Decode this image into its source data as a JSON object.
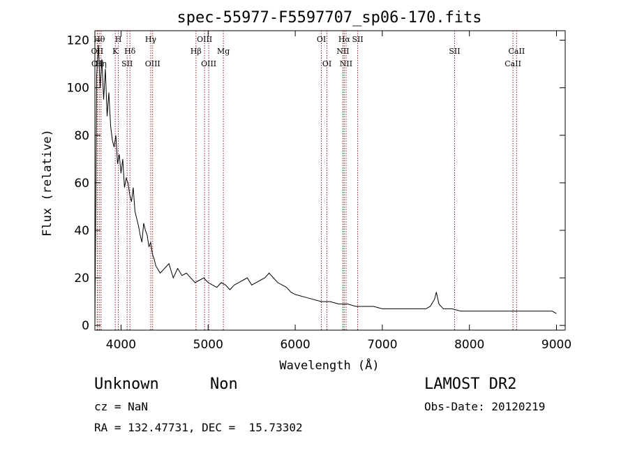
{
  "chart_data": {
    "type": "line",
    "title": "spec-55977-F5597707_sp06-170.fits",
    "xlabel": "Wavelength (Å)",
    "ylabel": "Flux (relative)",
    "xlim": [
      3700,
      9100
    ],
    "ylim": [
      -2,
      124
    ],
    "xticks": [
      4000,
      5000,
      6000,
      7000,
      8000,
      9000
    ],
    "yticks": [
      0,
      20,
      40,
      60,
      80,
      100,
      120
    ],
    "grid": false,
    "line_color": "#000000",
    "marker_color": "#8b1a1a",
    "series": [
      {
        "x": [
          3700,
          3720,
          3740,
          3760,
          3780,
          3800,
          3820,
          3840,
          3860,
          3880,
          3900,
          3920,
          3940,
          3960,
          3980,
          4000,
          4020,
          4040,
          4060,
          4080,
          4100,
          4120,
          4140,
          4160,
          4180,
          4200,
          4220,
          4240,
          4260,
          4280,
          4300,
          4320,
          4340,
          4360,
          4380,
          4400,
          4450,
          4500,
          4550,
          4600,
          4650,
          4700,
          4750,
          4800,
          4850,
          4900,
          4950,
          5000,
          5050,
          5100,
          5150,
          5200,
          5250,
          5300,
          5350,
          5400,
          5450,
          5500,
          5550,
          5600,
          5650,
          5700,
          5750,
          5800,
          5850,
          5900,
          5950,
          6000,
          6100,
          6200,
          6300,
          6400,
          6500,
          6600,
          6700,
          6800,
          6900,
          7000,
          7100,
          7200,
          7300,
          7400,
          7500,
          7550,
          7600,
          7620,
          7650,
          7700,
          7800,
          7900,
          8000,
          8100,
          8200,
          8300,
          8400,
          8500,
          8600,
          8700,
          8800,
          8900,
          8950,
          9000
        ],
        "y": [
          0,
          105,
          118,
          100,
          112,
          95,
          108,
          88,
          98,
          84,
          78,
          75,
          80,
          68,
          72,
          64,
          70,
          58,
          62,
          60,
          55,
          52,
          58,
          48,
          45,
          42,
          38,
          35,
          43,
          40,
          38,
          33,
          35,
          30,
          28,
          25,
          22,
          24,
          26,
          20,
          24,
          21,
          22,
          20,
          18,
          19,
          20,
          18,
          17,
          16,
          18,
          17,
          15,
          17,
          18,
          19,
          20,
          17,
          18,
          19,
          20,
          22,
          20,
          18,
          17,
          16,
          14,
          13,
          12,
          11,
          10,
          10,
          9,
          9,
          8,
          8,
          8,
          7,
          7,
          7,
          7,
          7,
          7,
          8,
          11,
          14,
          9,
          7,
          7,
          6,
          6,
          6,
          6,
          6,
          6,
          6,
          6,
          6,
          6,
          6,
          6,
          5
        ]
      }
    ],
    "line_markers": [
      {
        "x": 3727,
        "label": "OII",
        "row": 1
      },
      {
        "x": 3730,
        "label": "OII",
        "row": 2
      },
      {
        "x": 3750,
        "label": "Hθ",
        "row": 0
      },
      {
        "x": 3770,
        "label": "Hη",
        "row": 2
      },
      {
        "x": 3934,
        "label": "K",
        "row": 1
      },
      {
        "x": 3969,
        "label": "H",
        "row": 0
      },
      {
        "x": 4070,
        "label": "SII",
        "row": 2
      },
      {
        "x": 4102,
        "label": "Hδ",
        "row": 1
      },
      {
        "x": 4341,
        "label": "Hγ",
        "row": 0
      },
      {
        "x": 4363,
        "label": "OIII",
        "row": 2
      },
      {
        "x": 4861,
        "label": "Hβ",
        "row": 1
      },
      {
        "x": 4959,
        "label": "OIII",
        "row": 0
      },
      {
        "x": 5007,
        "label": "OIII",
        "row": 2
      },
      {
        "x": 5175,
        "label": "Mg",
        "row": 1
      },
      {
        "x": 6300,
        "label": "OI",
        "row": 0
      },
      {
        "x": 6364,
        "label": "OI",
        "row": 2
      },
      {
        "x": 6548,
        "label": "NII",
        "row": 1
      },
      {
        "x": 6563,
        "label": "Hα",
        "row": 0
      },
      {
        "x": 6584,
        "label": "NII",
        "row": 2
      },
      {
        "x": 6717,
        "label": "SII",
        "row": 0
      },
      {
        "x": 7830,
        "label": "SII",
        "row": 1
      },
      {
        "x": 8500,
        "label": "CaII",
        "row": 2
      },
      {
        "x": 8542,
        "label": "CaII",
        "row": 1
      }
    ]
  },
  "info": {
    "class_label": "Unknown",
    "subclass_label": "Non",
    "cz_label": "cz = NaN",
    "coords_label": "RA = 132.47731, DEC =  15.73302",
    "survey_label": "LAMOST DR2",
    "obs_date_label": "Obs-Date: 20120219"
  }
}
